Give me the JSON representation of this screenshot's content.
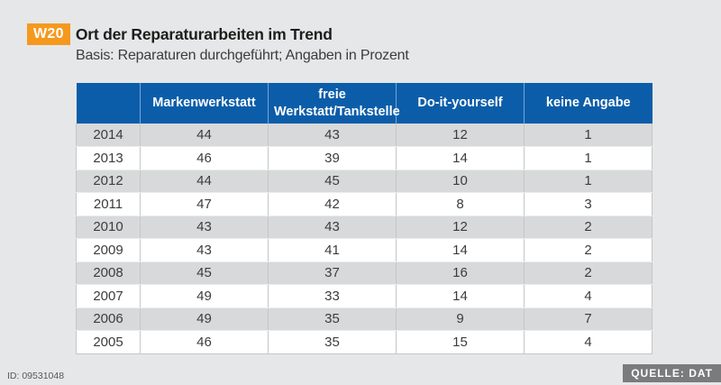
{
  "page": {
    "background_color": "#e6e7e8",
    "accent_blue": "#0c5da9",
    "accent_orange": "#f5991e",
    "zebra_gray": "#d8d9da",
    "source_badge_gray": "#7a7b7d"
  },
  "header": {
    "badge": "W20",
    "title": "Ort der Reparaturarbeiten im Trend",
    "subtitle": "Basis: Reparaturen durchgeführt; Angaben in Prozent"
  },
  "chart_data": {
    "type": "table",
    "title": "Ort der Reparaturarbeiten im Trend",
    "subtitle": "Basis: Reparaturen durchgeführt; Angaben in Prozent",
    "unit": "Prozent",
    "columns": [
      "",
      "Markenwerkstatt",
      "freie Werkstatt/Tankstelle",
      "Do-it-yourself",
      "keine Angabe"
    ],
    "rows": [
      {
        "year": "2014",
        "values": [
          44,
          43,
          12,
          1
        ]
      },
      {
        "year": "2013",
        "values": [
          46,
          39,
          14,
          1
        ]
      },
      {
        "year": "2012",
        "values": [
          44,
          45,
          10,
          1
        ]
      },
      {
        "year": "2011",
        "values": [
          47,
          42,
          8,
          3
        ]
      },
      {
        "year": "2010",
        "values": [
          43,
          43,
          12,
          2
        ]
      },
      {
        "year": "2009",
        "values": [
          43,
          41,
          14,
          2
        ]
      },
      {
        "year": "2008",
        "values": [
          45,
          37,
          16,
          2
        ]
      },
      {
        "year": "2007",
        "values": [
          49,
          33,
          14,
          4
        ]
      },
      {
        "year": "2006",
        "values": [
          49,
          35,
          9,
          7
        ]
      },
      {
        "year": "2005",
        "values": [
          46,
          35,
          15,
          4
        ]
      }
    ]
  },
  "footer": {
    "id_label": "ID: 09531048",
    "source_label": "QUELLE: DAT"
  }
}
